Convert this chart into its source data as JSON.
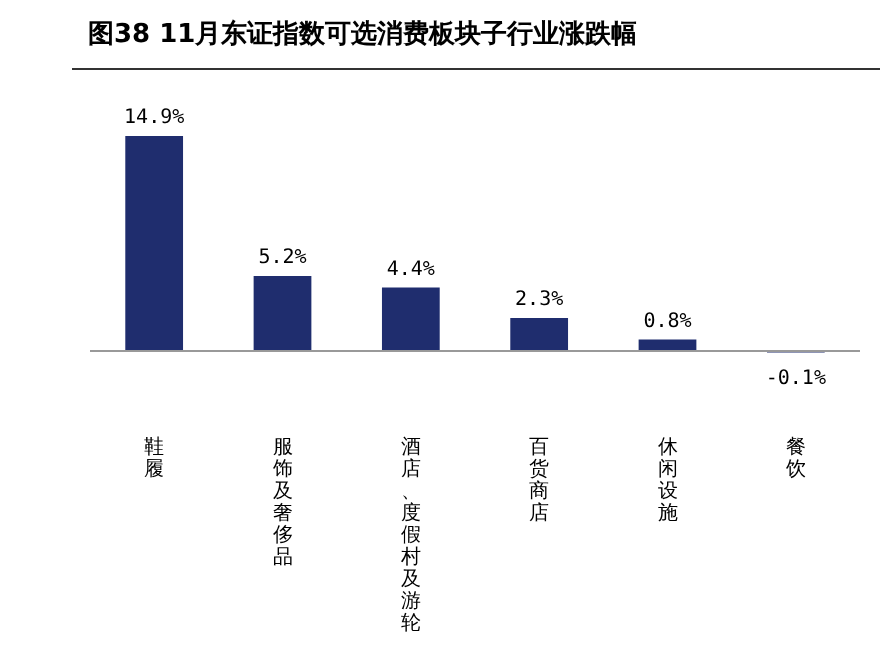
{
  "chart_data": {
    "type": "bar",
    "title": "图38 11月东证指数可选消费板块子行业涨跌幅",
    "categories": [
      "鞋履",
      "服饰及奢侈品",
      "酒店、度假村及游轮",
      "百货商店",
      "休闲设施",
      "餐饮"
    ],
    "values": [
      14.9,
      5.2,
      4.4,
      2.3,
      0.8,
      -0.1
    ],
    "value_labels": [
      "14.9%",
      "5.2%",
      "4.4%",
      "2.3%",
      "0.8%",
      "-0.1%"
    ],
    "color": "#1f2d6e"
  }
}
